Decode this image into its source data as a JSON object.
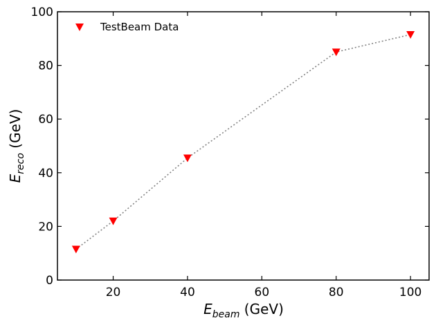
{
  "chart_data": {
    "type": "scatter",
    "series": [
      {
        "name": "TestBeam Data",
        "marker": "triangle-down",
        "color": "#ff0000",
        "line_style": "dotted",
        "line_color": "#808080",
        "x": [
          10,
          20,
          40,
          80,
          100
        ],
        "y": [
          11.5,
          22.0,
          45.5,
          85.0,
          91.5
        ]
      }
    ],
    "xlabel": {
      "symbol": "E",
      "subscript": "beam",
      "unit": " (GeV)"
    },
    "ylabel": {
      "symbol": "E",
      "subscript": "reco",
      "unit": " (GeV)"
    },
    "xlim": [
      5,
      105
    ],
    "ylim": [
      0,
      100
    ],
    "xticks": [
      20,
      40,
      60,
      80,
      100
    ],
    "yticks": [
      0,
      20,
      40,
      60,
      80,
      100
    ],
    "grid": false,
    "legend": {
      "position": "top-left"
    }
  }
}
